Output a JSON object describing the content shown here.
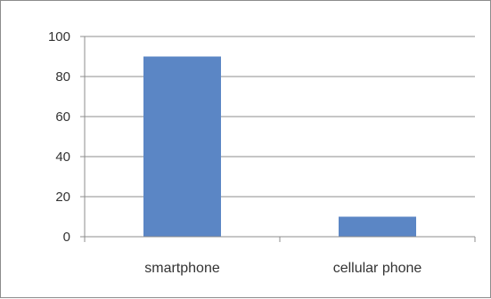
{
  "chart_data": {
    "type": "bar",
    "categories": [
      "smartphone",
      "cellular phone"
    ],
    "values": [
      90,
      10
    ],
    "title": "",
    "xlabel": "",
    "ylabel": "",
    "ylim": [
      0,
      100
    ],
    "yticks": [
      0,
      20,
      40,
      60,
      80,
      100
    ],
    "grid": true,
    "legend": "none",
    "bar_color": "#5b86c5",
    "grid_color": "#8c8c8c"
  }
}
